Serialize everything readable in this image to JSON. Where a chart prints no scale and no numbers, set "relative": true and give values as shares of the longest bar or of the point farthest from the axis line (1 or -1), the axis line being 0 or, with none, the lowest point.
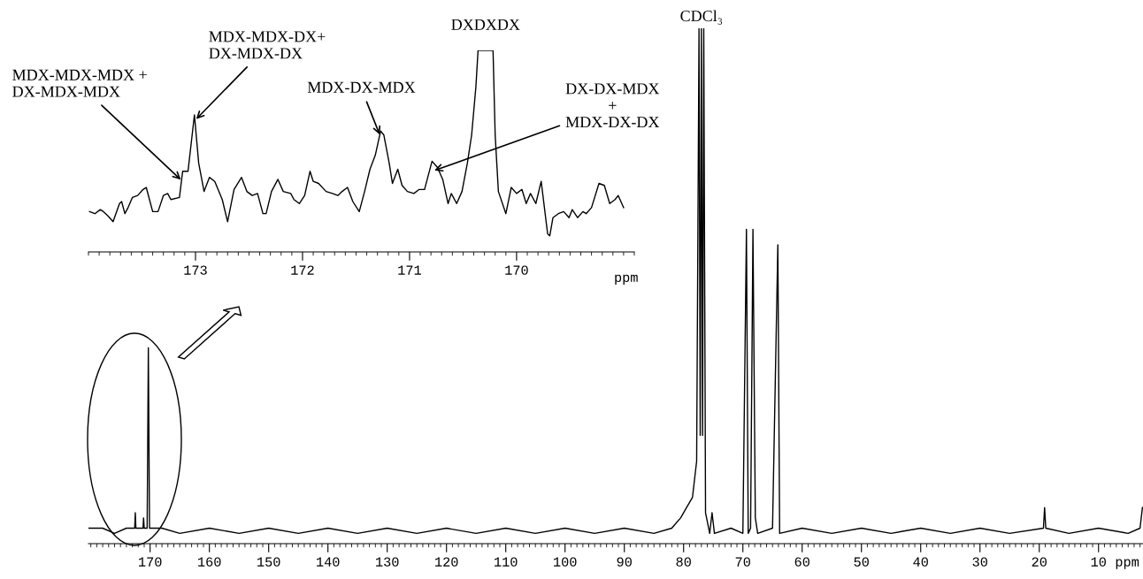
{
  "chart_data": [
    {
      "type": "line",
      "relative": true,
      "xlabel": "ppm",
      "xlim": [
        180.4,
        2.5
      ],
      "xticks": [
        170,
        160,
        150,
        140,
        130,
        120,
        110,
        100,
        90,
        80,
        70,
        60,
        50,
        40,
        30,
        20,
        10
      ],
      "tick_labels": "x",
      "annotations": [
        {
          "text": "CDCl₃",
          "x": 77.0,
          "y": 1.0
        }
      ],
      "series": [
        {
          "color": "#000000",
          "x": [
            180.4,
            178,
            176,
            174,
            172.6,
            172.5,
            172.4,
            171.2,
            171.1,
            171.0,
            170.5,
            170.3,
            170.1,
            168,
            165,
            160,
            155,
            150,
            145,
            140,
            135,
            130,
            125,
            120,
            115,
            110,
            105,
            100,
            95,
            90,
            85,
            82,
            80.5,
            79.5,
            78.5,
            77.8,
            77.4,
            77.2,
            77.0,
            76.8,
            76.6,
            76.3,
            75.6,
            75.2,
            74.8,
            72,
            70,
            69.4,
            69.1,
            68.7,
            68.3,
            67.9,
            67.5,
            65,
            64.1,
            63.8,
            60,
            55,
            50,
            45,
            40,
            35,
            30,
            25,
            19.3,
            19.1,
            18.9,
            15,
            10,
            5,
            3,
            2.6
          ],
          "values": [
            0.03,
            0.03,
            0.02,
            0.03,
            0.03,
            0.06,
            0.03,
            0.03,
            0.05,
            0.03,
            0.03,
            0.38,
            0.03,
            0.03,
            0.02,
            0.03,
            0.02,
            0.03,
            0.02,
            0.03,
            0.02,
            0.03,
            0.02,
            0.03,
            0.02,
            0.03,
            0.02,
            0.03,
            0.02,
            0.03,
            0.02,
            0.03,
            0.05,
            0.07,
            0.09,
            0.16,
            1.0,
            0.21,
            1.0,
            0.21,
            1.0,
            0.06,
            0.02,
            0.06,
            0.02,
            0.03,
            0.02,
            0.61,
            0.02,
            0.03,
            0.61,
            0.05,
            0.02,
            0.03,
            0.58,
            0.02,
            0.03,
            0.02,
            0.03,
            0.02,
            0.03,
            0.02,
            0.03,
            0.02,
            0.03,
            0.07,
            0.03,
            0.02,
            0.03,
            0.02,
            0.03,
            0.07
          ]
        }
      ]
    },
    {
      "type": "line",
      "relative": true,
      "xlabel": "ppm",
      "xlim": [
        174.0,
        168.9
      ],
      "xticks": [
        173,
        172,
        171,
        170
      ],
      "tick_labels": "x",
      "annotations": [
        {
          "text": "MDX-MDX-MDX +\nDX-MDX-MDX",
          "x": 173.12,
          "y": 0.35
        },
        {
          "text": "MDX-MDX-DX+\nDX-MDX-DX",
          "x": 173.01,
          "y": 0.65
        },
        {
          "text": "MDX-DX-MDX",
          "x": 171.27,
          "y": 0.57
        },
        {
          "text": "DXDXDX",
          "x": 170.29,
          "y": 1.0
        },
        {
          "text": "DX-DX-MDX\n+\nMDX-DX-DX",
          "x": 170.79,
          "y": 0.4
        }
      ],
      "series": [
        {
          "color": "#000000",
          "x": [
            173.99,
            173.94,
            173.89,
            173.86,
            173.82,
            173.77,
            173.71,
            173.69,
            173.66,
            173.63,
            173.59,
            173.54,
            173.49,
            173.46,
            173.43,
            173.4,
            173.35,
            173.3,
            173.26,
            173.23,
            173.15,
            173.12,
            173.07,
            173.01,
            172.97,
            172.92,
            172.87,
            172.82,
            172.75,
            172.7,
            172.64,
            172.57,
            172.52,
            172.47,
            172.42,
            172.37,
            172.34,
            172.29,
            172.23,
            172.18,
            172.11,
            172.08,
            172.03,
            171.98,
            171.93,
            171.9,
            171.85,
            171.78,
            171.72,
            171.67,
            171.63,
            171.58,
            171.53,
            171.47,
            171.42,
            171.37,
            171.32,
            171.27,
            171.24,
            171.19,
            171.16,
            171.11,
            171.07,
            171.02,
            170.96,
            170.91,
            170.86,
            170.79,
            170.74,
            170.69,
            170.64,
            170.61,
            170.56,
            170.51,
            170.46,
            170.42,
            170.38,
            170.36,
            170.22,
            170.2,
            170.17,
            170.1,
            170.05,
            170.0,
            169.95,
            169.91,
            169.87,
            169.82,
            169.77,
            169.71,
            169.69,
            169.66,
            169.61,
            169.56,
            169.51,
            169.48,
            169.43,
            169.38,
            169.35,
            169.3,
            169.23,
            169.18,
            169.13,
            169.08,
            169.05,
            169.0
          ],
          "values": [
            0.2,
            0.19,
            0.21,
            0.2,
            0.18,
            0.15,
            0.24,
            0.25,
            0.19,
            0.22,
            0.27,
            0.28,
            0.31,
            0.32,
            0.26,
            0.2,
            0.2,
            0.28,
            0.29,
            0.26,
            0.27,
            0.4,
            0.4,
            0.68,
            0.44,
            0.3,
            0.37,
            0.35,
            0.26,
            0.15,
            0.31,
            0.37,
            0.3,
            0.28,
            0.29,
            0.19,
            0.19,
            0.3,
            0.36,
            0.3,
            0.29,
            0.26,
            0.24,
            0.28,
            0.4,
            0.35,
            0.34,
            0.3,
            0.29,
            0.28,
            0.3,
            0.32,
            0.25,
            0.2,
            0.3,
            0.41,
            0.48,
            0.6,
            0.58,
            0.44,
            0.34,
            0.41,
            0.33,
            0.3,
            0.29,
            0.31,
            0.31,
            0.45,
            0.42,
            0.36,
            0.24,
            0.29,
            0.24,
            0.3,
            0.44,
            0.58,
            0.82,
            1.0,
            1.0,
            0.58,
            0.3,
            0.19,
            0.32,
            0.29,
            0.31,
            0.24,
            0.29,
            0.24,
            0.35,
            0.09,
            0.08,
            0.17,
            0.19,
            0.2,
            0.17,
            0.21,
            0.17,
            0.2,
            0.19,
            0.22,
            0.34,
            0.33,
            0.24,
            0.26,
            0.28,
            0.22
          ]
        }
      ]
    }
  ]
}
